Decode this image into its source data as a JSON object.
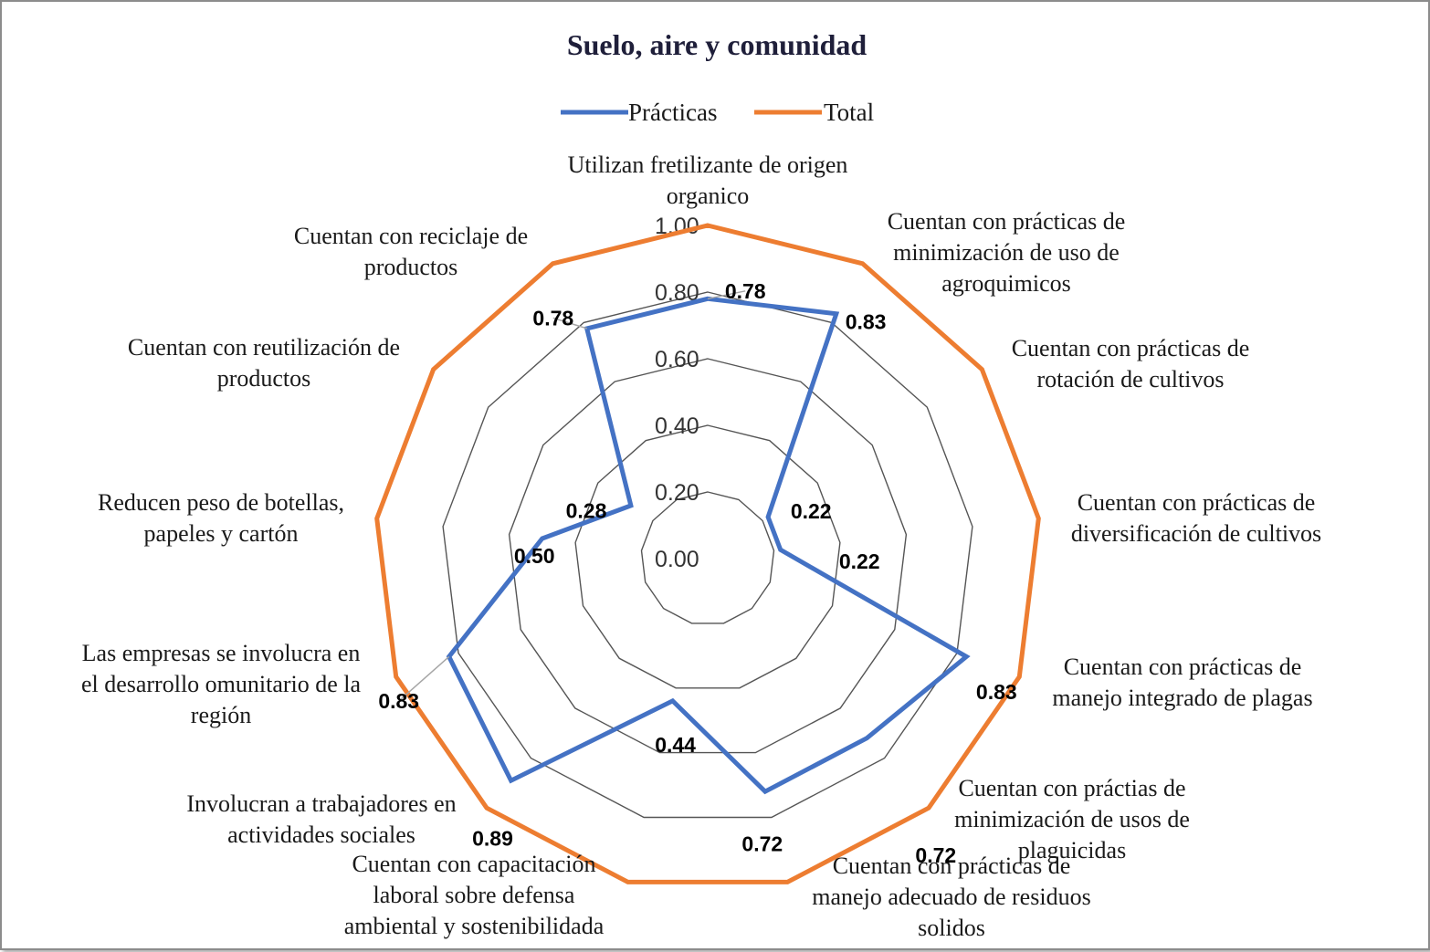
{
  "chart_data": {
    "type": "radar",
    "title": "Suelo, aire y comunidad",
    "categories": [
      "Utilizan fretilizante de origen organico",
      "Cuentan con prácticas de minimización de uso de agroquimicos",
      "Cuentan con prácticas de rotación de cultivos",
      "Cuentan con prácticas de diversificación de cultivos",
      "Cuentan con prácticas de manejo integrado de plagas",
      "Cuentan con práctias de minimización de usos de plaguicidas",
      "Cuentan con prácticas de manejo adecuado de residuos solidos",
      "Cuentan con capacitación laboral sobre defensa ambiental y sostenibilidada",
      "Involucran a trabajadores en actividades sociales",
      "Las empresas se involucra en el desarrollo omunitario de la región",
      "Reducen peso de botellas, papeles y cartón",
      "Cuentan con reutilización de productos",
      "Cuentan con reciclaje de productos"
    ],
    "series": [
      {
        "name": "Prácticas",
        "color": "#4472c4",
        "values": [
          0.78,
          0.83,
          0.22,
          0.22,
          0.83,
          0.72,
          0.72,
          0.44,
          0.89,
          0.83,
          0.5,
          0.28,
          0.78
        ],
        "labels": [
          "0.78",
          "0.83",
          "0.22",
          "0.22",
          "0.83",
          "0.72",
          "0.72",
          "0.44",
          "0.89",
          "0.83",
          "0.50",
          "0.28",
          "0.78"
        ]
      },
      {
        "name": "Total",
        "color": "#ed7d31",
        "values": [
          1,
          1,
          1,
          1,
          1,
          1,
          1,
          1,
          1,
          1,
          1,
          1,
          1
        ]
      }
    ],
    "rlim": [
      0,
      1
    ],
    "ticks": [
      "0.00",
      "0.20",
      "0.40",
      "0.60",
      "0.80",
      "1.00"
    ],
    "legend": "top",
    "grid": true
  }
}
